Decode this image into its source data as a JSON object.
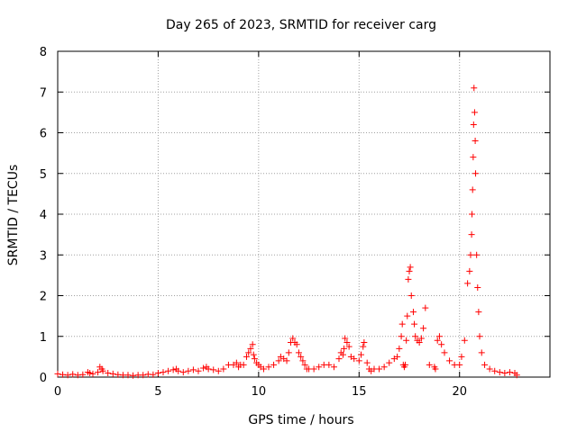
{
  "chart_data": {
    "type": "scatter",
    "title": "Day 265 of 2023, SRMTID for receiver carg",
    "xlabel": "GPS time / hours",
    "ylabel": "SRMTID / TECUs",
    "xlim": [
      0,
      24.5
    ],
    "ylim": [
      0,
      8
    ],
    "xticks": [
      0,
      5,
      10,
      15,
      20
    ],
    "yticks": [
      0,
      1,
      2,
      3,
      4,
      5,
      6,
      7,
      8
    ],
    "grid": true,
    "marker": "+",
    "color": "#ff0000",
    "series": [
      {
        "name": "SRMTID",
        "x": [
          0.0,
          0.25,
          0.5,
          0.75,
          1.0,
          1.25,
          1.5,
          1.6,
          1.75,
          2.0,
          2.1,
          2.2,
          2.25,
          2.5,
          2.75,
          3.0,
          3.25,
          3.5,
          3.75,
          4.0,
          4.25,
          4.5,
          4.75,
          5.0,
          5.25,
          5.5,
          5.75,
          5.9,
          6.0,
          6.25,
          6.5,
          6.75,
          7.0,
          7.25,
          7.4,
          7.5,
          7.75,
          8.0,
          8.25,
          8.5,
          8.75,
          8.9,
          9.0,
          9.1,
          9.25,
          9.4,
          9.5,
          9.6,
          9.7,
          9.75,
          9.8,
          9.9,
          10.0,
          10.1,
          10.25,
          10.5,
          10.75,
          11.0,
          11.1,
          11.25,
          11.4,
          11.5,
          11.6,
          11.7,
          11.8,
          11.9,
          12.0,
          12.1,
          12.2,
          12.3,
          12.4,
          12.5,
          12.75,
          13.0,
          13.25,
          13.5,
          13.75,
          14.0,
          14.1,
          14.2,
          14.25,
          14.3,
          14.4,
          14.5,
          14.6,
          14.75,
          15.0,
          15.1,
          15.2,
          15.25,
          15.4,
          15.5,
          15.6,
          15.75,
          16.0,
          16.25,
          16.5,
          16.75,
          16.9,
          17.0,
          17.1,
          17.15,
          17.2,
          17.25,
          17.3,
          17.35,
          17.4,
          17.45,
          17.5,
          17.55,
          17.6,
          17.7,
          17.75,
          17.8,
          17.9,
          18.0,
          18.1,
          18.2,
          18.3,
          18.5,
          18.75,
          18.8,
          18.9,
          19.0,
          19.1,
          19.25,
          19.5,
          19.75,
          20.0,
          20.1,
          20.25,
          20.4,
          20.5,
          20.55,
          20.6,
          20.62,
          20.65,
          20.68,
          20.7,
          20.72,
          20.75,
          20.78,
          20.8,
          20.85,
          20.9,
          20.95,
          21.0,
          21.1,
          21.25,
          21.5,
          21.75,
          22.0,
          22.25,
          22.5,
          22.75,
          22.85
        ],
        "y": [
          0.08,
          0.06,
          0.05,
          0.07,
          0.05,
          0.06,
          0.12,
          0.1,
          0.08,
          0.12,
          0.25,
          0.2,
          0.15,
          0.1,
          0.08,
          0.06,
          0.05,
          0.05,
          0.04,
          0.05,
          0.05,
          0.07,
          0.06,
          0.1,
          0.12,
          0.15,
          0.18,
          0.2,
          0.15,
          0.12,
          0.15,
          0.18,
          0.15,
          0.22,
          0.25,
          0.2,
          0.18,
          0.15,
          0.2,
          0.3,
          0.3,
          0.35,
          0.25,
          0.3,
          0.3,
          0.5,
          0.6,
          0.7,
          0.8,
          0.55,
          0.45,
          0.35,
          0.3,
          0.25,
          0.2,
          0.25,
          0.3,
          0.4,
          0.5,
          0.45,
          0.4,
          0.6,
          0.85,
          0.95,
          0.85,
          0.8,
          0.6,
          0.5,
          0.4,
          0.3,
          0.2,
          0.2,
          0.2,
          0.25,
          0.3,
          0.3,
          0.25,
          0.45,
          0.6,
          0.55,
          0.7,
          0.95,
          0.85,
          0.75,
          0.5,
          0.45,
          0.4,
          0.55,
          0.75,
          0.85,
          0.35,
          0.2,
          0.15,
          0.2,
          0.2,
          0.25,
          0.35,
          0.45,
          0.5,
          0.7,
          1.0,
          1.3,
          0.3,
          0.25,
          0.3,
          0.9,
          1.5,
          2.4,
          2.6,
          2.7,
          2.0,
          1.6,
          1.3,
          1.0,
          0.9,
          0.85,
          0.95,
          1.2,
          1.7,
          0.3,
          0.25,
          0.2,
          0.9,
          1.0,
          0.8,
          0.6,
          0.4,
          0.3,
          0.3,
          0.5,
          0.9,
          2.3,
          2.6,
          3.0,
          3.5,
          4.0,
          4.6,
          5.4,
          6.2,
          7.1,
          6.5,
          5.8,
          5.0,
          3.0,
          2.2,
          1.6,
          1.0,
          0.6,
          0.3,
          0.2,
          0.15,
          0.12,
          0.1,
          0.12,
          0.1,
          0.05
        ]
      }
    ]
  }
}
